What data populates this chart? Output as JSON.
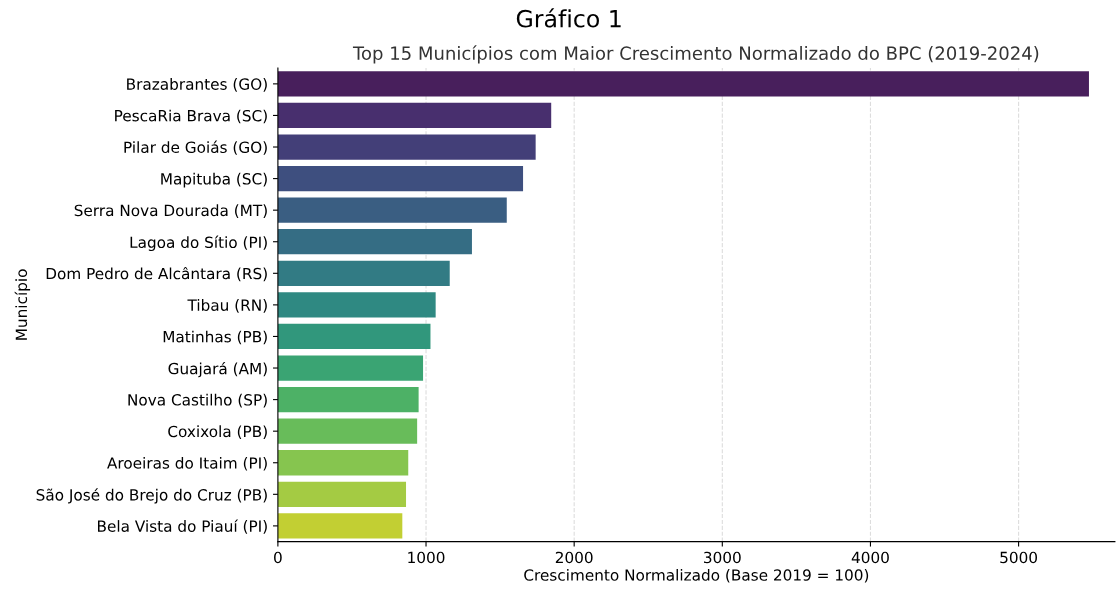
{
  "chart_data": {
    "type": "bar",
    "orientation": "horizontal",
    "title": "Gráfico 1",
    "subtitle": "Top 15 Municípios com Maior Crescimento Normalizado do BPC (2019-2024)",
    "xlabel": "Crescimento Normalizado (Base 2019 = 100)",
    "ylabel": "Município",
    "categories": [
      "Brazabrantes (GO)",
      "PescaRia Brava (SC)",
      "Pilar de Goiás (GO)",
      "Mapituba (SC)",
      "Serra Nova Dourada (MT)",
      "Lagoa do Sítio (PI)",
      "Dom Pedro de Alcântara (RS)",
      "Tibau (RN)",
      "Matinhas (PB)",
      "Guajará (AM)",
      "Nova Castilho (SP)",
      "Coxixola (PB)",
      "Aroeiras do Itaim (PI)",
      "São José do Brejo do Cruz (PB)",
      "Bela Vista do Piauí (PI)"
    ],
    "values": [
      5475,
      1845,
      1740,
      1655,
      1545,
      1310,
      1160,
      1065,
      1030,
      980,
      950,
      940,
      880,
      865,
      840
    ],
    "colors": [
      "#481f5c",
      "#482f6e",
      "#433f78",
      "#3e4f7f",
      "#3a5e82",
      "#356d84",
      "#327b84",
      "#2f8982",
      "#31977c",
      "#3aa473",
      "#4db166",
      "#68bc5a",
      "#86c54f",
      "#a4cb43",
      "#c2cf33"
    ],
    "xlim": [
      0,
      5650
    ],
    "xticks": [
      0,
      1000,
      2000,
      3000,
      4000,
      5000
    ],
    "grid": "x"
  }
}
